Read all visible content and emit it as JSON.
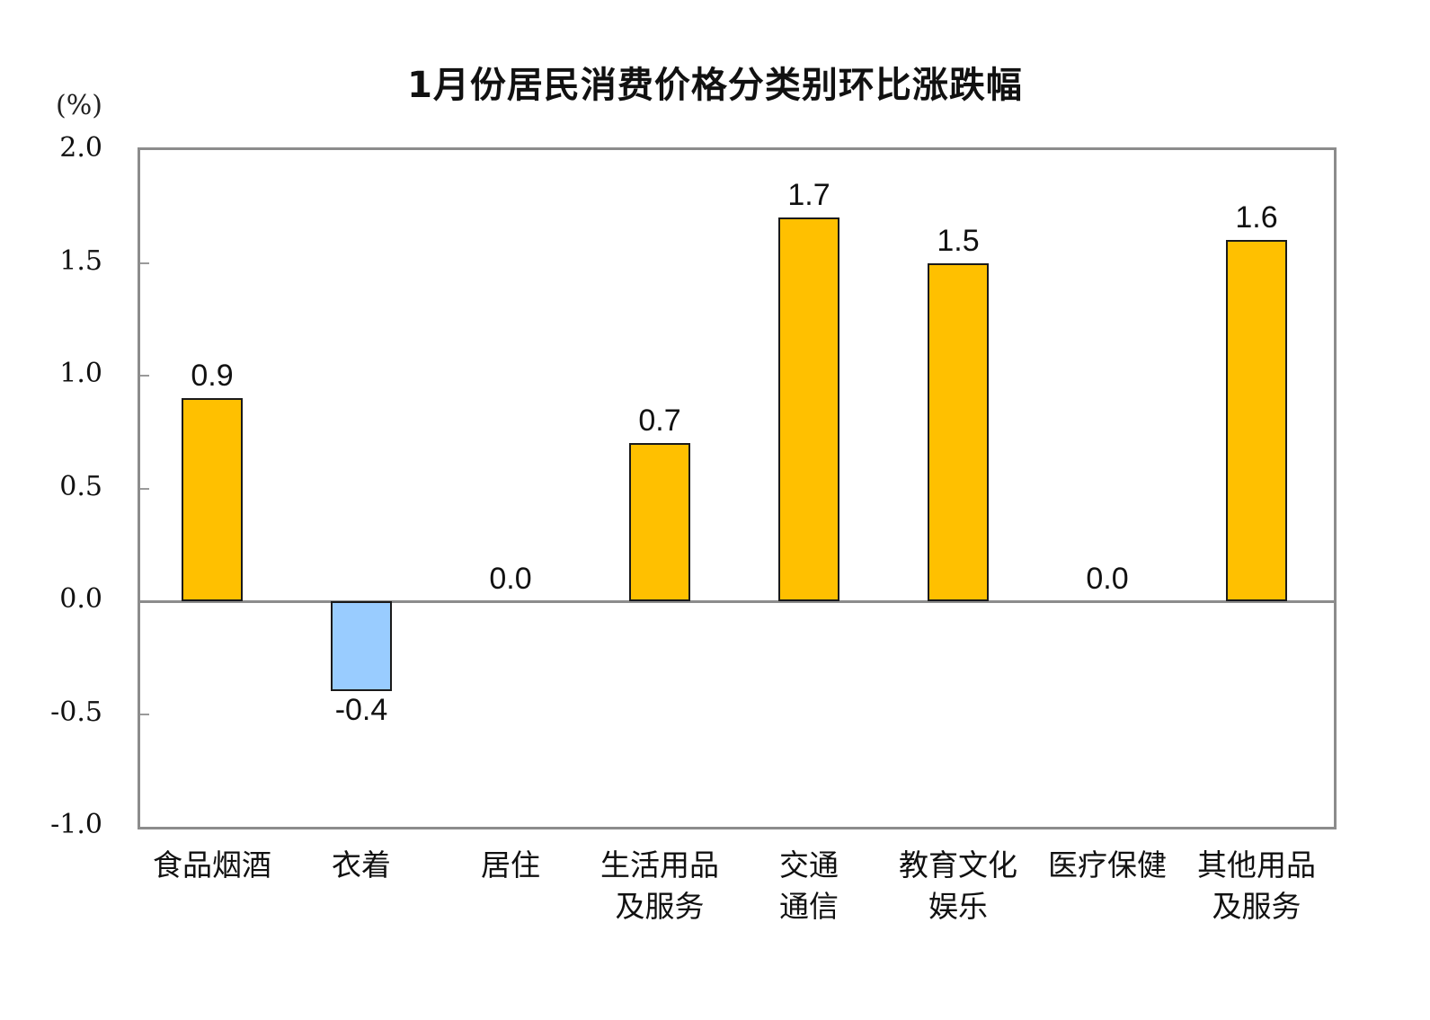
{
  "chart_data": {
    "type": "bar",
    "title": "1月份居民消费价格分类别环比涨跌幅",
    "xlabel": "",
    "ylabel": "(%)",
    "ylim": [
      -1.0,
      2.0
    ],
    "yticks": [
      "2.0",
      "1.5",
      "1.0",
      "0.5",
      "0.0",
      "-0.5",
      "-1.0"
    ],
    "grid": false,
    "legend": null,
    "categories": [
      "食品烟酒",
      "衣着",
      "居住",
      "生活用品及服务",
      "交通通信",
      "教育文化娱乐",
      "医疗保健",
      "其他用品及服务"
    ],
    "category_lines": [
      [
        "食品烟酒"
      ],
      [
        "衣着"
      ],
      [
        "居住"
      ],
      [
        "生活用品",
        "及服务"
      ],
      [
        "交通",
        "通信"
      ],
      [
        "教育文化",
        "娱乐"
      ],
      [
        "医疗保健"
      ],
      [
        "其他用品",
        "及服务"
      ]
    ],
    "values": [
      0.9,
      -0.4,
      0.0,
      0.7,
      1.7,
      1.5,
      0.0,
      1.6
    ],
    "value_labels": [
      "0.9",
      "-0.4",
      "0.0",
      "0.7",
      "1.7",
      "1.5",
      "0.0",
      "1.6"
    ],
    "colors": {
      "positive": "#FFC000",
      "negative": "#99CCFF",
      "axis": "#8C8C8C"
    }
  }
}
